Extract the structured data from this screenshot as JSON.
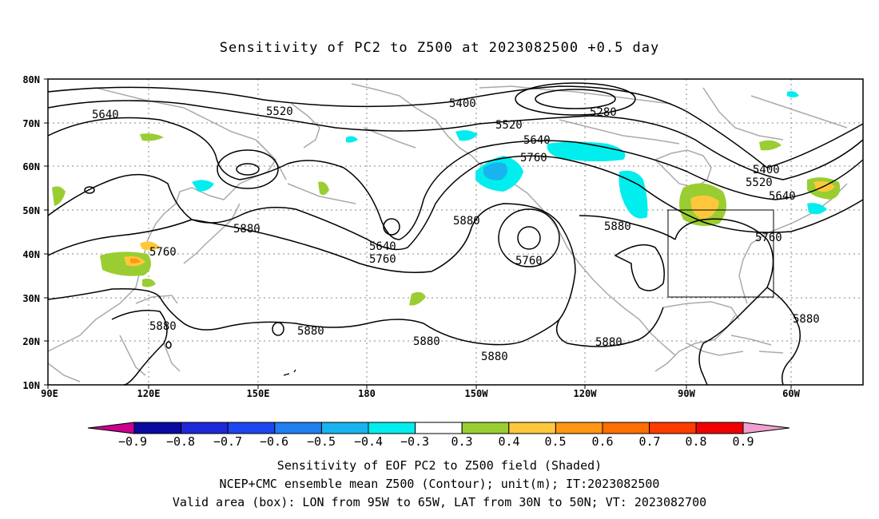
{
  "title": "Sensitivity of PC2 to Z500 at 2023082500 +0.5 day",
  "map": {
    "lat_ticks": [
      "80N",
      "70N",
      "60N",
      "50N",
      "40N",
      "30N",
      "20N",
      "10N"
    ],
    "lon_ticks": [
      "90E",
      "120E",
      "150E",
      "180",
      "150W",
      "120W",
      "90W",
      "60W"
    ],
    "lon_range": [
      "90E",
      "45W"
    ],
    "lat_range": [
      "10N",
      "80N"
    ],
    "grid": "dotted",
    "contour_interval_m": 120,
    "contour_labels": [
      "5280",
      "5400",
      "5400",
      "5520",
      "5520",
      "5520",
      "5640",
      "5640",
      "5640",
      "5640",
      "5760",
      "5760",
      "5760",
      "5760",
      "5760",
      "5880",
      "5880",
      "5880",
      "5880",
      "5880",
      "5880",
      "5880",
      "5880"
    ],
    "valid_box": {
      "lon_from": "95W",
      "lon_to": "65W",
      "lat_from": "30N",
      "lat_to": "50N"
    }
  },
  "colorbar": {
    "labels": [
      "−0.9",
      "−0.8",
      "−0.7",
      "−0.6",
      "−0.5",
      "−0.4",
      "−0.3",
      "0.3",
      "0.4",
      "0.5",
      "0.6",
      "0.7",
      "0.8",
      "0.9"
    ],
    "colors": [
      "#c8008c",
      "#0a0aa0",
      "#1e28d8",
      "#1e46ee",
      "#2080f0",
      "#18b4f0",
      "#00eeee",
      "#ffffff",
      "#9acd32",
      "#ffc83c",
      "#ff9614",
      "#ff6e00",
      "#ff3c00",
      "#f00000",
      "#f0a0d0"
    ]
  },
  "footer": {
    "line1": "Sensitivity of EOF PC2 to Z500 field (Shaded)",
    "line2": "NCEP+CMC ensemble mean Z500 (Contour); unit(m); IT:2023082500",
    "line3": "Valid area (box): LON from 95W to 65W, LAT from 30N to 50N; VT: 2023082700"
  }
}
